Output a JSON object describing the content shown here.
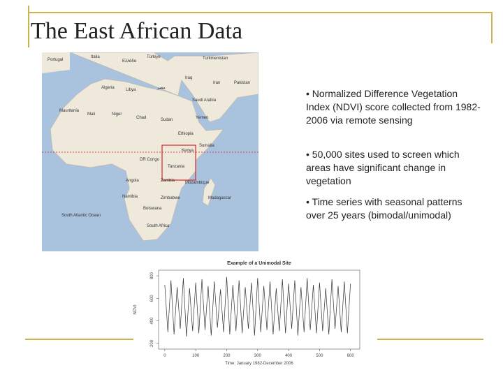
{
  "header": {
    "title": "The East African Data"
  },
  "bullets": [
    "• Normalized Difference Vegetation Index (NDVI) score collected from 1982-2006 via remote sensing",
    "• 50,000 sites used to screen which areas have significant change in vegetation",
    "• Time series with seasonal patterns over 25 years (bimodal/unimodal)"
  ],
  "map": {
    "labels": [
      "Portugal",
      "Italia",
      "Türkiye",
      "Ελλάδα",
      "Turkmenistan",
      "Iraq",
      "Iran",
      "Pakistan",
      "Algeria",
      "Libya",
      "مصر",
      "Saudi Arabia",
      "Mauritania",
      "Mali",
      "Niger",
      "Chad",
      "Sudan",
      "Yemen",
      "Ethiopia",
      "Somalia",
      "Kenya",
      "DR Congo",
      "Tanzania",
      "Angola",
      "Zambia",
      "Mozambique",
      "Namibia",
      "Zimbabwe",
      "Botswana",
      "Madagascar",
      "South Africa",
      "South Atlantic Ocean"
    ]
  },
  "chart_data": {
    "type": "line",
    "title": "Example of a Unimodal Site",
    "xlabel": "Time: January 1982-December 2006",
    "ylabel": "NDVI",
    "x": [
      0,
      10,
      20,
      30,
      40,
      50,
      60,
      70,
      80,
      90,
      100,
      110,
      120,
      130,
      140,
      150,
      160,
      170,
      180,
      190,
      200,
      210,
      220,
      230,
      240,
      250,
      260,
      270,
      280,
      290,
      300,
      310,
      320,
      330,
      340,
      350,
      360,
      370,
      380,
      390,
      400,
      410,
      420,
      430,
      440,
      450,
      460,
      470,
      480,
      490,
      500,
      510,
      520,
      530,
      540,
      550,
      560,
      570,
      580,
      590,
      600
    ],
    "values": [
      720,
      300,
      760,
      280,
      700,
      330,
      780,
      260,
      690,
      310,
      740,
      290,
      770,
      320,
      710,
      270,
      750,
      340,
      680,
      300,
      790,
      280,
      720,
      310,
      760,
      290,
      700,
      330,
      740,
      270,
      780,
      300,
      710,
      320,
      750,
      280,
      690,
      310,
      770,
      290,
      730,
      330,
      760,
      270,
      700,
      300,
      780,
      320,
      720,
      290,
      740,
      310,
      690,
      280,
      770,
      330,
      710,
      300,
      750,
      290,
      730
    ],
    "color": "#333333",
    "xlim": [
      -20,
      630
    ],
    "ylim": [
      150,
      850
    ],
    "xticks": [
      0,
      100,
      200,
      300,
      400,
      500,
      600
    ],
    "yticks": [
      200,
      400,
      600,
      800
    ]
  }
}
